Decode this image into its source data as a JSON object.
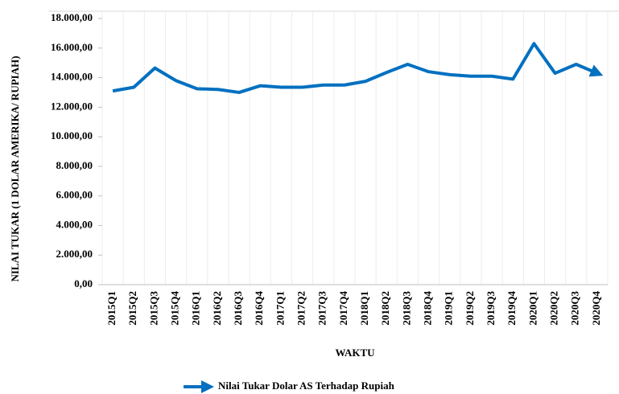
{
  "chart_data": {
    "type": "line",
    "x_label": "WAKTU",
    "y_label": "NILAI TUKAR (1 DOLAR AMERIKA/ RUPIAH)",
    "categories": [
      "2015Q1",
      "2015Q2",
      "2015Q3",
      "2015Q4",
      "2016Q1",
      "2016Q2",
      "2016Q3",
      "2016Q4",
      "2017Q1",
      "2017Q2",
      "2017Q3",
      "2017Q4",
      "2018Q1",
      "2018Q2",
      "2018Q3",
      "2018Q4",
      "2019Q1",
      "2019Q2",
      "2019Q3",
      "2019Q4",
      "2020Q1",
      "2020Q2",
      "2020Q3",
      "2020Q4"
    ],
    "series": [
      {
        "name": "Nilai Tukar Dolar AS Terhadap Rupiah",
        "color": "#0070c0",
        "values": [
          13100,
          13350,
          14650,
          13800,
          13250,
          13200,
          13000,
          13450,
          13350,
          13350,
          13500,
          13500,
          13750,
          14350,
          14900,
          14400,
          14200,
          14100,
          14100,
          13900,
          16300,
          14300,
          14900,
          14300
        ]
      }
    ],
    "ylim": [
      0,
      18000
    ],
    "yticks": [
      {
        "value": 0,
        "label": "0,00"
      },
      {
        "value": 2000,
        "label": "2.000,00"
      },
      {
        "value": 4000,
        "label": "4.000,00"
      },
      {
        "value": 6000,
        "label": "6.000,00"
      },
      {
        "value": 8000,
        "label": "8.000,00"
      },
      {
        "value": 10000,
        "label": "10.000,00"
      },
      {
        "value": 12000,
        "label": "12.000,00"
      },
      {
        "value": 14000,
        "label": "14.000,00"
      },
      {
        "value": 16000,
        "label": "16.000,00"
      },
      {
        "value": 18000,
        "label": "18.000,00"
      }
    ],
    "legend": "bottom"
  }
}
